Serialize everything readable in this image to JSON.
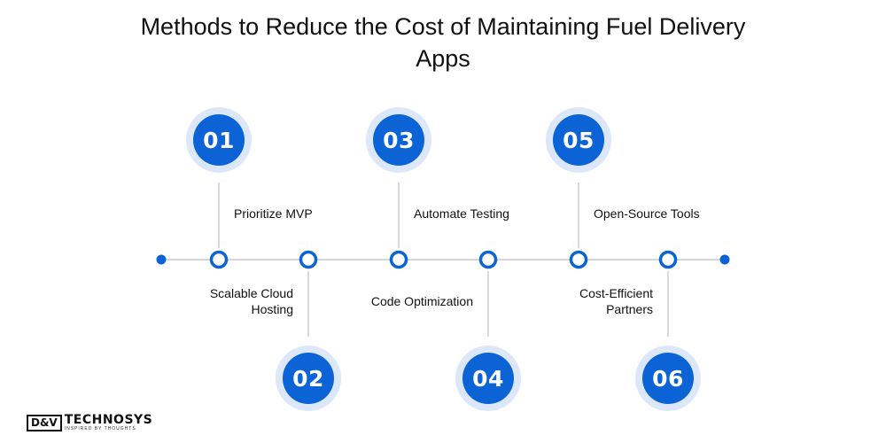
{
  "title": "Methods to Reduce the Cost of Maintaining Fuel Delivery Apps",
  "colors": {
    "accent": "#0b63d6",
    "badge_halo": "#dce8f9",
    "line": "#d6d6d6",
    "connector": "#cccccc"
  },
  "steps": [
    {
      "number": "01",
      "label": "Prioritize MVP",
      "position": "top"
    },
    {
      "number": "02",
      "label": "Scalable Cloud Hosting",
      "position": "bottom"
    },
    {
      "number": "03",
      "label": "Automate Testing",
      "position": "top"
    },
    {
      "number": "04",
      "label": "Code Optimization",
      "position": "bottom"
    },
    {
      "number": "05",
      "label": "Open-Source Tools",
      "position": "top"
    },
    {
      "number": "06",
      "label": "Cost-Efficient Partners",
      "position": "bottom"
    }
  ],
  "logo": {
    "mark": "D&V",
    "name": "TECHNOSYS",
    "tagline": "INSPIRED BY THOUGHTS"
  }
}
